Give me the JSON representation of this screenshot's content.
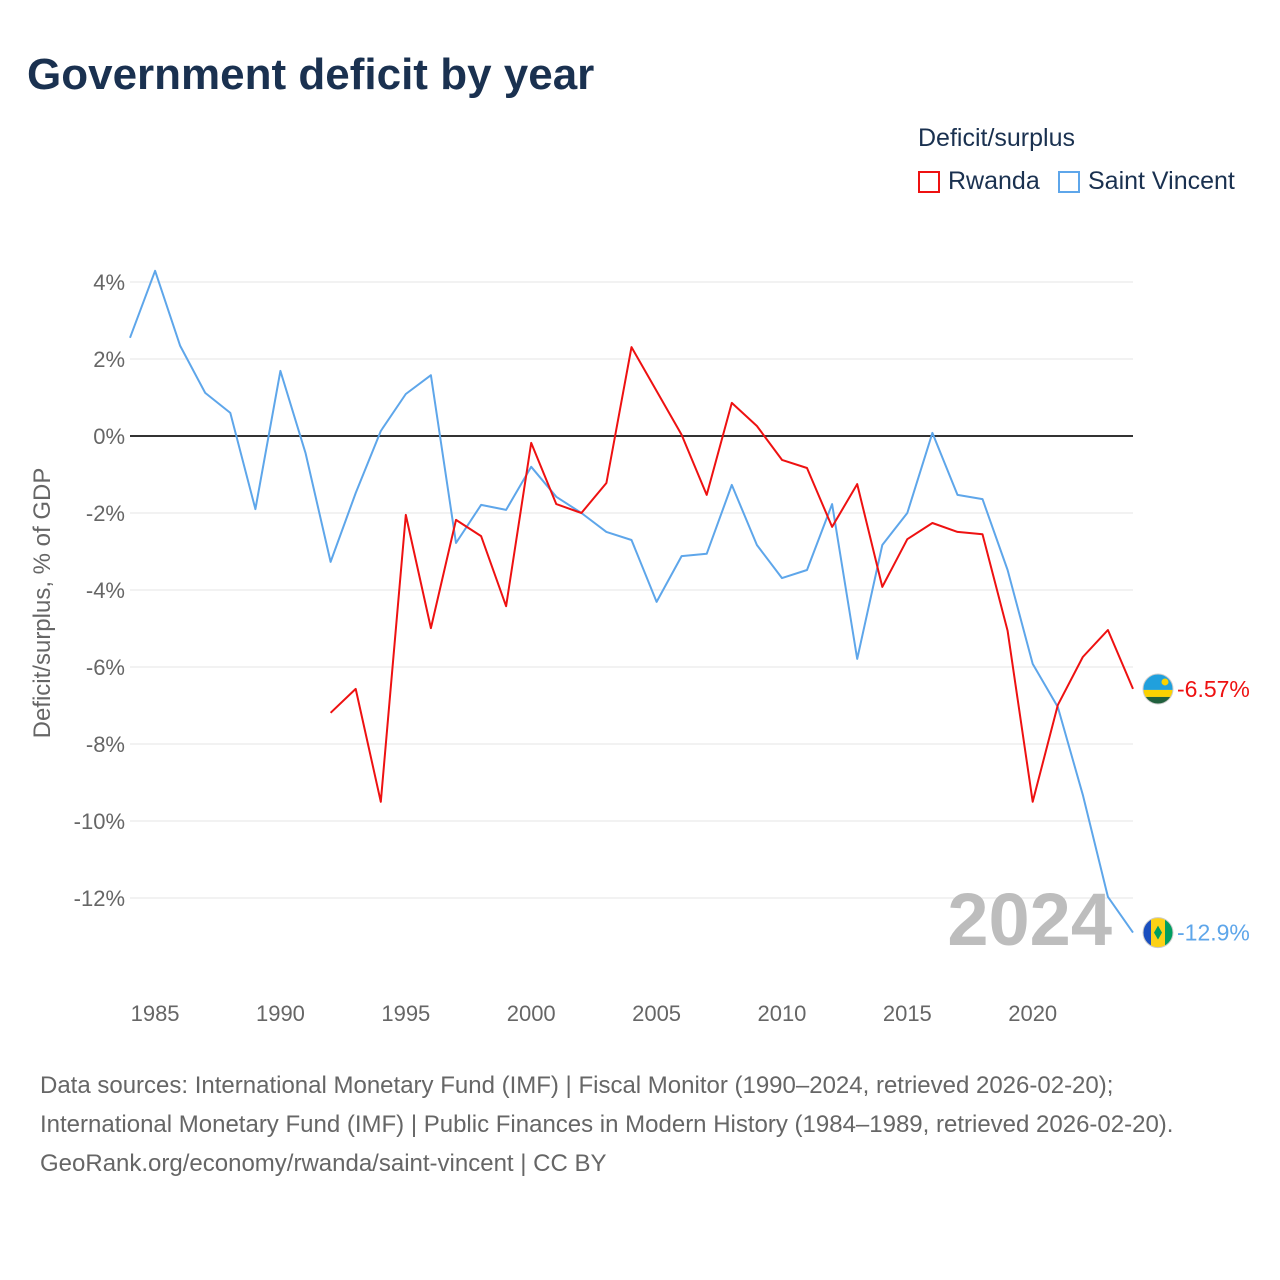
{
  "title": "Government deficit by year",
  "legend": {
    "title": "Deficit/surplus",
    "items": [
      {
        "label": "Rwanda",
        "color": "#ee1111"
      },
      {
        "label": "Saint Vincent",
        "color": "#5ea6ea"
      }
    ]
  },
  "footer": {
    "sources": "Data sources: International Monetary Fund (IMF) | Fiscal Monitor (1990–2024, retrieved 2026-02-20); International Monetary Fund (IMF) | Public Finances in Modern History (1984–1989, retrieved 2026-02-20).",
    "credit": "GeoRank.org/economy/rwanda/saint-vincent | CC BY"
  },
  "chart_data": {
    "type": "line",
    "title": "Government deficit by year",
    "ylabel": "Deficit/surplus, % of GDP",
    "xlabel": "",
    "xlim": [
      1984,
      2024
    ],
    "ylim": [
      -14,
      4.4
    ],
    "yticks": [
      4,
      2,
      0,
      -2,
      -4,
      -6,
      -8,
      -10,
      -12
    ],
    "ytick_labels": [
      "4%",
      "2%",
      "0%",
      "-2%",
      "-4%",
      "-6%",
      "-8%",
      "-10%",
      "-12%"
    ],
    "xticks": [
      1985,
      1990,
      1995,
      2000,
      2005,
      2010,
      2015,
      2020
    ],
    "xtick_labels": [
      "1985",
      "1990",
      "1995",
      "2000",
      "2005",
      "2010",
      "2015",
      "2020"
    ],
    "year_watermark": "2024",
    "legend_position": "top-right",
    "series": [
      {
        "name": "Rwanda",
        "color": "#ee1111",
        "start_year": 1992,
        "end_label": "-6.57%",
        "values": [
          -7.19,
          -6.57,
          -9.5,
          -2.05,
          -4.99,
          -2.18,
          -2.6,
          -4.42,
          -0.18,
          -1.77,
          -2.0,
          -1.22,
          2.31,
          1.17,
          0.03,
          -1.53,
          0.86,
          0.26,
          -0.62,
          -0.83,
          -2.36,
          -1.25,
          -3.92,
          -2.68,
          -2.26,
          -2.49,
          -2.55,
          -5.06,
          -9.5,
          -6.99,
          -5.74,
          -5.04,
          -6.57
        ]
      },
      {
        "name": "Saint Vincent",
        "color": "#5ea6ea",
        "start_year": 1984,
        "end_label": "-12.9%",
        "values": [
          2.55,
          4.29,
          2.34,
          1.12,
          0.6,
          -1.9,
          1.69,
          -0.44,
          -3.27,
          -1.48,
          0.13,
          1.09,
          1.58,
          -2.78,
          -1.79,
          -1.92,
          -0.8,
          -1.58,
          -2.0,
          -2.49,
          -2.7,
          -4.31,
          -3.12,
          -3.06,
          -1.27,
          -2.83,
          -3.69,
          -3.48,
          -1.77,
          -5.79,
          -2.83,
          -2.0,
          0.08,
          -1.53,
          -1.64,
          -3.48,
          -5.92,
          -7.04,
          -9.32,
          -11.97,
          -12.9
        ]
      }
    ]
  }
}
